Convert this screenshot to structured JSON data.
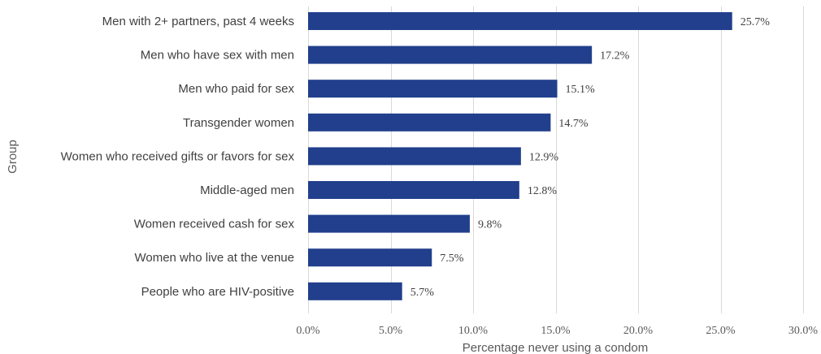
{
  "chart_data": {
    "type": "bar",
    "orientation": "horizontal",
    "categories": [
      "Men with 2+ partners, past 4 weeks",
      "Men who have sex with men",
      "Men who paid for sex",
      "Transgender women",
      "Women who received gifts or favors for sex",
      "Middle-aged men",
      "Women received cash for sex",
      "Women who live at the venue",
      "People who are HIV-positive"
    ],
    "values": [
      25.7,
      17.2,
      15.1,
      14.7,
      12.9,
      12.8,
      9.8,
      7.5,
      5.7
    ],
    "data_labels": [
      "25.7%",
      "17.2%",
      "15.1%",
      "14.7%",
      "12.9%",
      "12.8%",
      "9.8%",
      "7.5%",
      "5.7%"
    ],
    "xlim": [
      0,
      30
    ],
    "x_ticks": [
      0,
      5,
      10,
      15,
      20,
      25,
      30
    ],
    "x_tick_labels": [
      "0.0%",
      "5.0%",
      "10.0%",
      "15.0%",
      "20.0%",
      "25.0%",
      "30.0%"
    ],
    "xlabel": "Percentage never using a condom",
    "ylabel": "Group",
    "title": "",
    "grid": "vertical",
    "legend": "none",
    "bar_color": "#213f8c"
  }
}
